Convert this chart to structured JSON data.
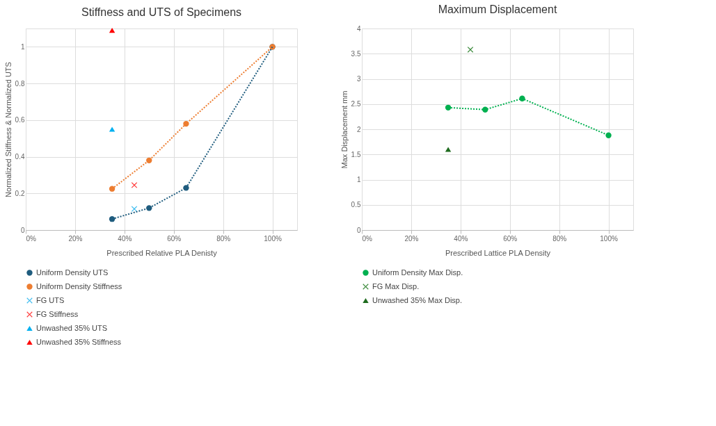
{
  "chart_data": [
    {
      "type": "scatter",
      "title": "Stiffness and UTS of Specimens",
      "xlabel": "Prescribed Relative PLA Denisty",
      "ylabel": "Normalized Stiffness & Normalized UTS",
      "xlim": [
        0,
        110
      ],
      "xticks": [
        {
          "value": 0,
          "label": "0%"
        },
        {
          "value": 20,
          "label": "20%"
        },
        {
          "value": 40,
          "label": "40%"
        },
        {
          "value": 60,
          "label": "60%"
        },
        {
          "value": 80,
          "label": "80%"
        },
        {
          "value": 100,
          "label": "100%"
        }
      ],
      "ylim": [
        0,
        1.1
      ],
      "yticks": [
        0,
        0.2,
        0.4,
        0.6,
        0.8,
        1
      ],
      "grid": true,
      "legend": "bottom",
      "series": [
        {
          "name": "Uniform Density UTS",
          "type": "line",
          "marker": "circle",
          "line_style": "dotted",
          "color": "#1f5c7e",
          "x": [
            35,
            50,
            65,
            100
          ],
          "values": [
            0.06,
            0.12,
            0.23,
            1.0
          ]
        },
        {
          "name": "Uniform Density Stiffness",
          "type": "line",
          "marker": "circle",
          "line_style": "dotted",
          "color": "#ed7d31",
          "x": [
            35,
            50,
            65,
            100
          ],
          "values": [
            0.225,
            0.38,
            0.58,
            1.0
          ]
        },
        {
          "name": "FG UTS",
          "type": "scatter",
          "marker": "cross",
          "color": "#3fbdf0",
          "x": [
            44
          ],
          "values": [
            0.115
          ]
        },
        {
          "name": "FG Stiffness",
          "type": "scatter",
          "marker": "cross",
          "color": "#ff3b3b",
          "x": [
            44
          ],
          "values": [
            0.245
          ]
        },
        {
          "name": "Unwashed 35% UTS",
          "type": "scatter",
          "marker": "triangle",
          "color": "#00b0f0",
          "x": [
            35
          ],
          "values": [
            0.55
          ]
        },
        {
          "name": "Unwashed 35% Stiffness",
          "type": "scatter",
          "marker": "triangle",
          "color": "#ff0000",
          "x": [
            35
          ],
          "values": [
            1.09
          ]
        }
      ]
    },
    {
      "type": "scatter",
      "title": "Maximum Displacement",
      "xlabel": "Prescribed Lattice PLA Density",
      "ylabel": "Max Displacement mm",
      "xlim": [
        0,
        110
      ],
      "xticks": [
        {
          "value": 0,
          "label": "0%"
        },
        {
          "value": 20,
          "label": "20%"
        },
        {
          "value": 40,
          "label": "40%"
        },
        {
          "value": 60,
          "label": "60%"
        },
        {
          "value": 80,
          "label": "80%"
        },
        {
          "value": 100,
          "label": "100%"
        }
      ],
      "ylim": [
        0,
        4
      ],
      "yticks": [
        0,
        0.5,
        1,
        1.5,
        2,
        2.5,
        3,
        3.5,
        4
      ],
      "grid": true,
      "legend": "bottom",
      "series": [
        {
          "name": "Uniform Density Max Disp.",
          "type": "line",
          "marker": "circle",
          "line_style": "dotted",
          "color": "#00b050",
          "x": [
            35,
            50,
            65,
            100
          ],
          "values": [
            2.43,
            2.39,
            2.61,
            1.88
          ]
        },
        {
          "name": "FG Max Disp.",
          "type": "scatter",
          "marker": "cross",
          "color": "#3a8a3a",
          "x": [
            44
          ],
          "values": [
            3.58
          ]
        },
        {
          "name": "Unwashed 35% Max Disp.",
          "type": "scatter",
          "marker": "triangle",
          "color": "#1e6b1e",
          "x": [
            35
          ],
          "values": [
            1.6
          ]
        }
      ]
    }
  ]
}
